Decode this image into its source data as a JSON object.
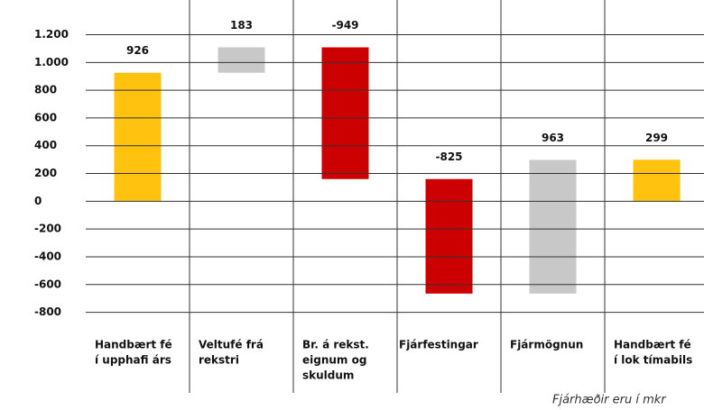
{
  "chart_data": {
    "type": "waterfall",
    "categories": [
      [
        "Handbært fé",
        "í upphafi árs"
      ],
      [
        "Veltufé frá",
        "rekstri"
      ],
      [
        "Br. á rekst.",
        "eignum og",
        "skuldum"
      ],
      [
        "Fjárfestingar"
      ],
      [
        "Fjármögnun"
      ],
      [
        "Handbært fé",
        "í lok tímabils"
      ]
    ],
    "values": [
      926,
      183,
      -949,
      -825,
      963,
      299
    ],
    "totals": [
      true,
      false,
      false,
      false,
      false,
      true
    ],
    "colors": [
      "#ffc20e",
      "#c8c8c8",
      "#cc0000",
      "#cc0000",
      "#c8c8c8",
      "#ffc20e"
    ],
    "ylim": [
      -900,
      1450
    ],
    "yticks": [
      {
        "value": 1200,
        "label": "1.200"
      },
      {
        "value": 1000,
        "label": "1.000"
      },
      800,
      600,
      400,
      200,
      0,
      -200,
      -400,
      -600,
      -800
    ],
    "grid": true,
    "note": "Fjárhæðir eru í mkr"
  }
}
